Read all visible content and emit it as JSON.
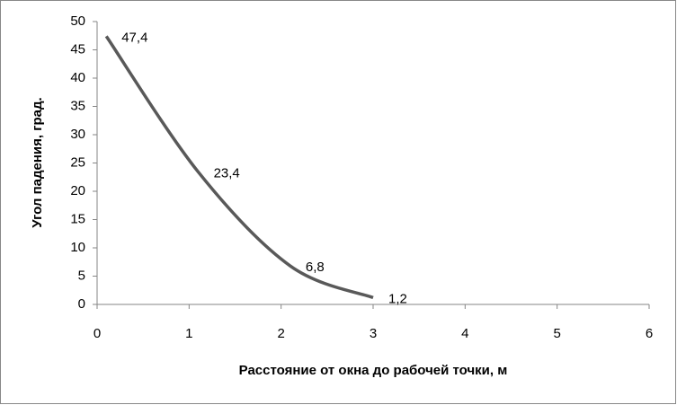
{
  "chart_data": {
    "type": "line",
    "x_label": "Расстояние от окна до рабочей точки, м",
    "y_label": "Угол падения, град.",
    "x": [
      0.1,
      1.1,
      2.1,
      3
    ],
    "series": [
      {
        "name": "Угол падения",
        "color": "#595959",
        "values": [
          47.4,
          23.4,
          6.8,
          1.2
        ],
        "value_labels": [
          "47,4",
          "23,4",
          "6,8",
          "1,2"
        ]
      }
    ],
    "xlim": [
      0,
      6
    ],
    "xticks": [
      0,
      1,
      2,
      3,
      4,
      5,
      6
    ],
    "ylim": [
      0,
      50
    ],
    "yticks": [
      0,
      5,
      10,
      15,
      20,
      25,
      30,
      35,
      40,
      45,
      50
    ],
    "grid": false,
    "smooth": true
  }
}
